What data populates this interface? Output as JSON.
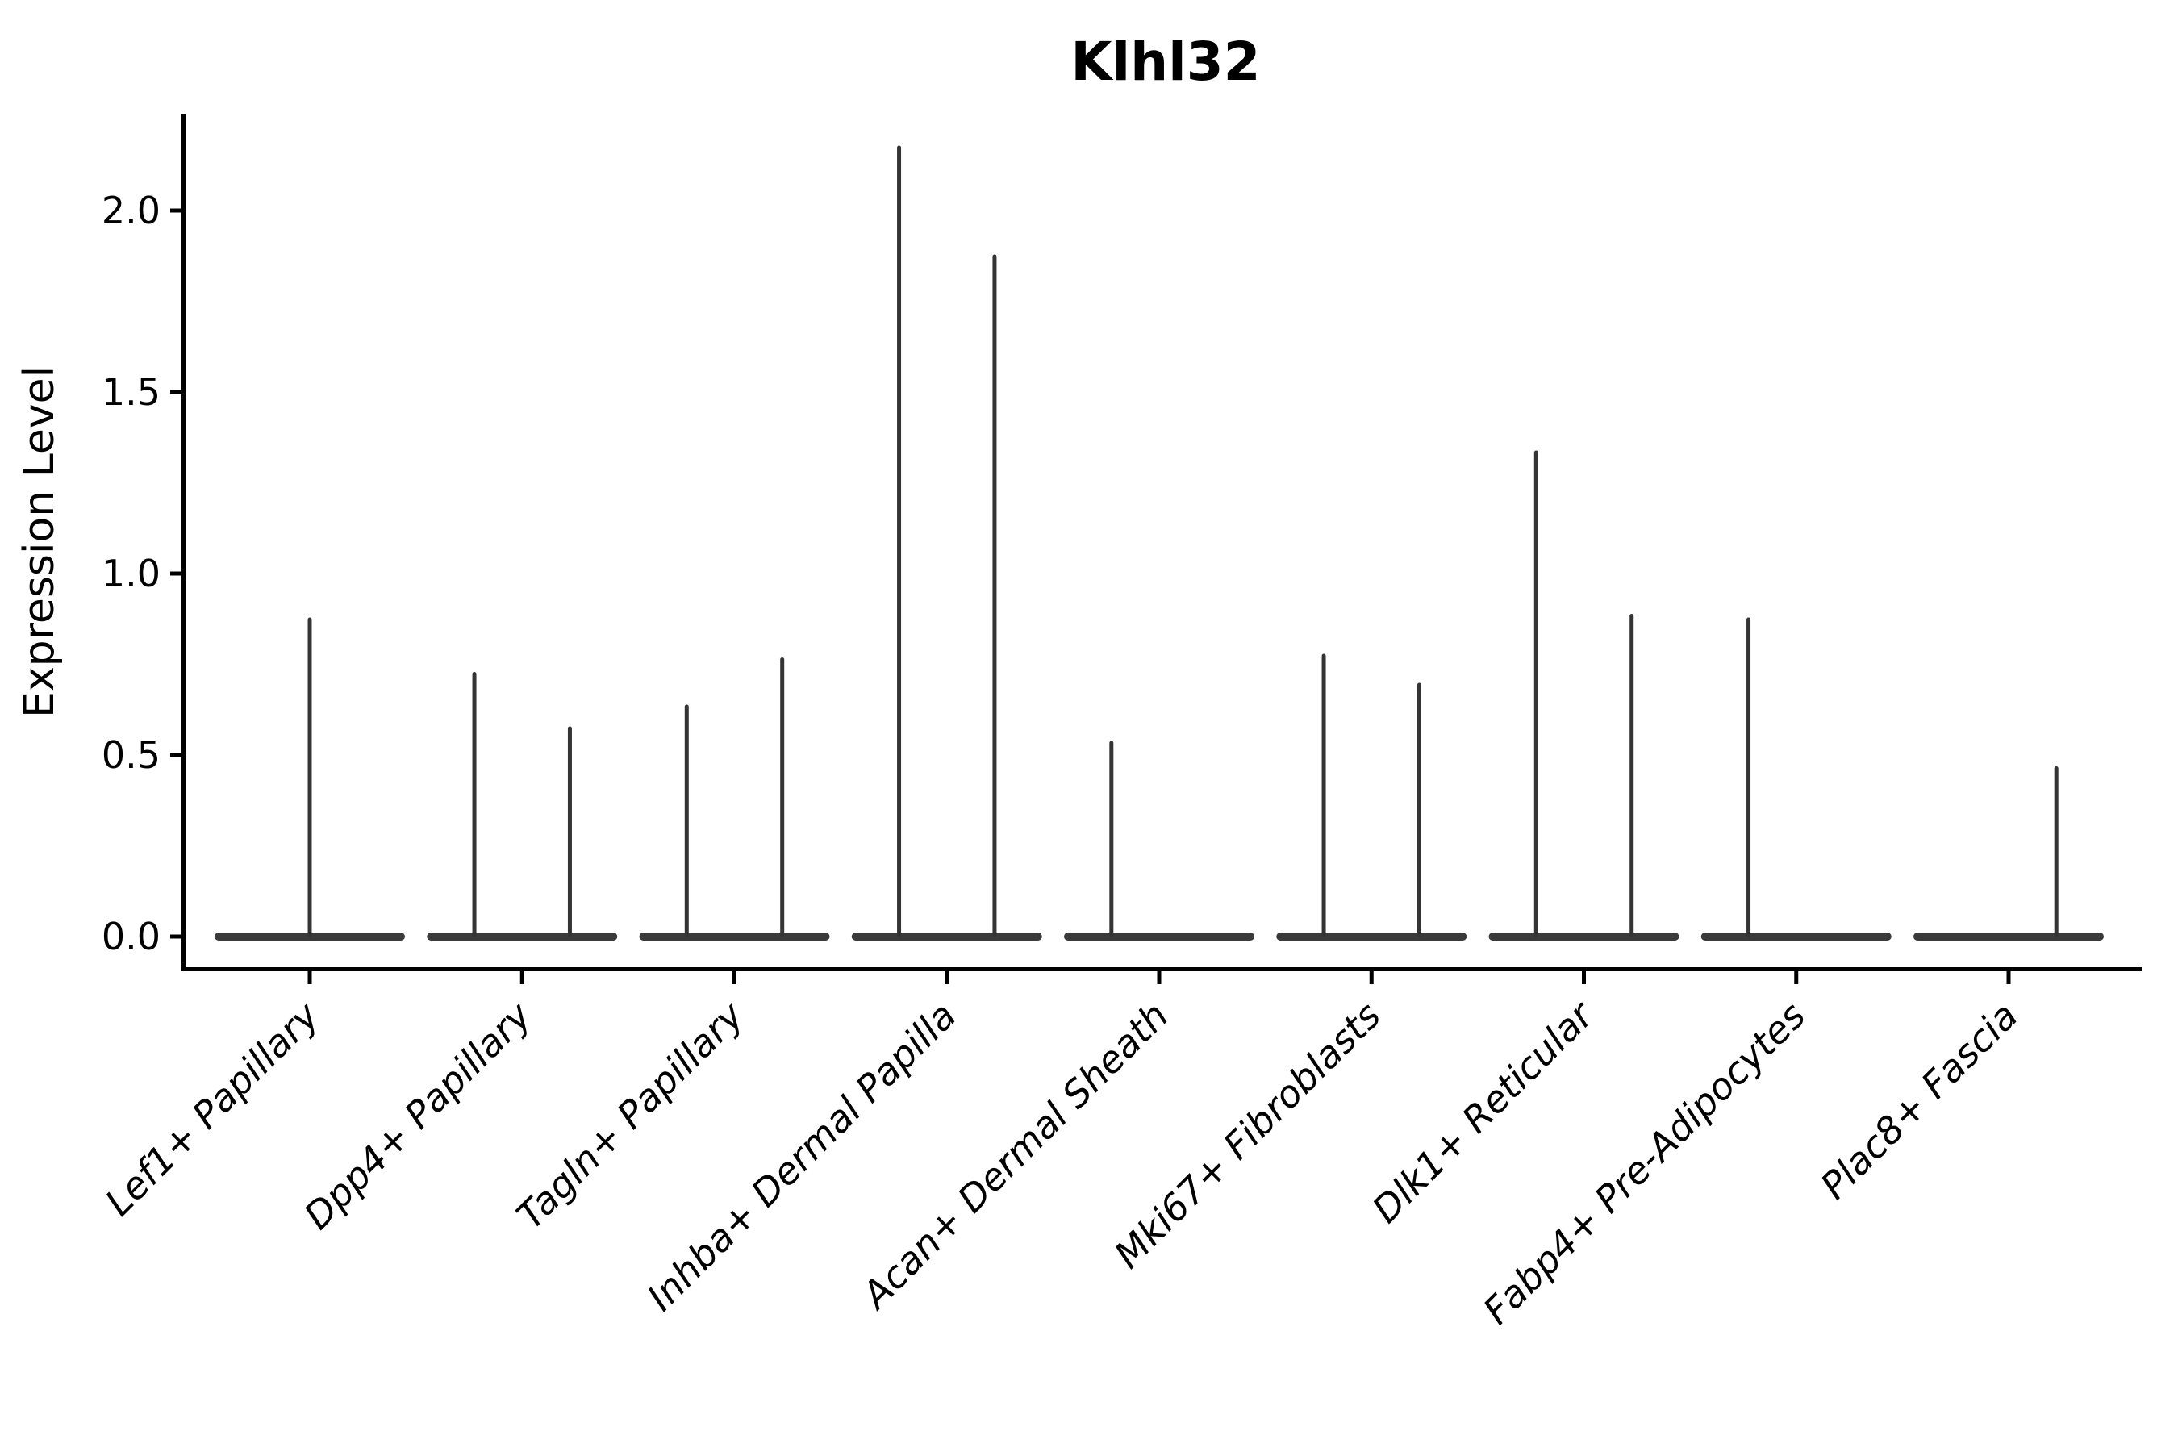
{
  "title": "Klhl32",
  "ylabel": "Expression Level",
  "chart_data": {
    "type": "violin",
    "title": "Klhl32",
    "xlabel": "",
    "ylabel": "Expression Level",
    "ylim": [
      -0.1,
      2.27
    ],
    "yticks": [
      0.0,
      0.5,
      1.0,
      1.5,
      2.0
    ],
    "ytick_labels": [
      "0.0",
      "0.5",
      "1.0",
      "1.5",
      "2.0"
    ],
    "x_tick_rotation": 45,
    "grid": false,
    "legend": "none",
    "description": "Violin plot of Klhl32 expression per fibroblast cell type; each violin collapses to a flat bar at 0 with a thin density spike rising to the maximum expression value. Several categories contain two side-by-side (dodged) violins.",
    "categories": [
      "Lef1+ Papillary",
      "Dpp4+ Papillary",
      "Tagln+ Papillary",
      "Inhba+ Dermal Papilla",
      "Acan+ Dermal Sheath",
      "Mki67+ Fibroblasts",
      "Dlk1+ Reticular",
      "Fabp4+ Pre-Adipocytes",
      "Plac8+ Fascia"
    ],
    "violins": [
      {
        "category": "Lef1+ Papillary",
        "spikes": [
          {
            "slot": "center",
            "max": 0.88
          }
        ]
      },
      {
        "category": "Dpp4+ Papillary",
        "spikes": [
          {
            "slot": "left",
            "max": 0.73
          },
          {
            "slot": "right",
            "max": 0.58
          }
        ]
      },
      {
        "category": "Tagln+ Papillary",
        "spikes": [
          {
            "slot": "left",
            "max": 0.64
          },
          {
            "slot": "right",
            "max": 0.77
          }
        ]
      },
      {
        "category": "Inhba+ Dermal Papilla",
        "spikes": [
          {
            "slot": "left",
            "max": 2.18
          },
          {
            "slot": "right",
            "max": 1.88
          }
        ]
      },
      {
        "category": "Acan+ Dermal Sheath",
        "spikes": [
          {
            "slot": "left",
            "max": 0.54
          }
        ]
      },
      {
        "category": "Mki67+ Fibroblasts",
        "spikes": [
          {
            "slot": "left",
            "max": 0.78
          },
          {
            "slot": "right",
            "max": 0.7
          }
        ]
      },
      {
        "category": "Dlk1+ Reticular",
        "spikes": [
          {
            "slot": "left",
            "max": 1.34
          },
          {
            "slot": "right",
            "max": 0.89
          }
        ]
      },
      {
        "category": "Fabp4+ Pre-Adipocytes",
        "spikes": [
          {
            "slot": "left",
            "max": 0.88
          }
        ]
      },
      {
        "category": "Plac8+ Fascia",
        "spikes": [
          {
            "slot": "right",
            "max": 0.47
          }
        ]
      }
    ]
  },
  "style": {
    "violin_color": "#3a3a3a",
    "axis_color": "#000000",
    "background": "#ffffff"
  }
}
